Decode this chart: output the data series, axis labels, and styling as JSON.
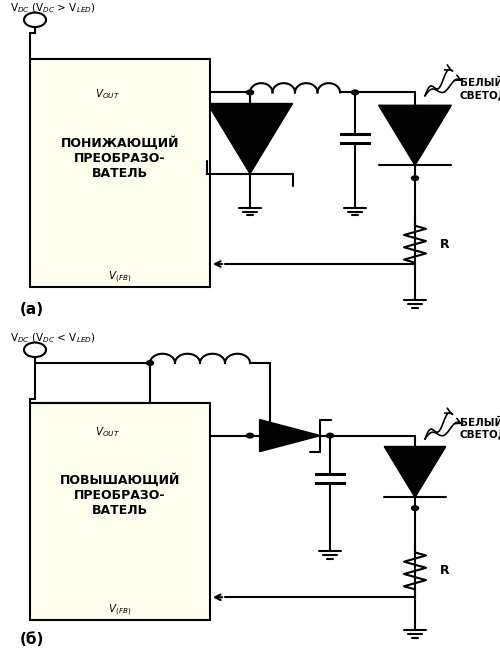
{
  "bg_color": "#ffffff",
  "box_fill": "#ffffee",
  "box_edge": "#000000",
  "title_a": "V$_{DC}$ (V$_{DC}$ > V$_{LED}$)",
  "title_b": "V$_{DC}$ (V$_{DC}$ < V$_{LED}$)",
  "box_text_a": "ПОНИЖАЮЩИЙ\nПРЕОБРАЗО-\nВАТЕЛЬ",
  "box_text_b": "ПОВЫШАЮЩИЙ\nПРЕОБРАЗО-\nВАТЕЛЬ",
  "label_a": "(а)",
  "label_b": "(б)",
  "vout_label": "V$_{OUT}$",
  "vfb_label": "V$_{(FB)}$",
  "led_label": "БЕЛЫЙ\nСВЕТОДИОД",
  "r_label": "R"
}
